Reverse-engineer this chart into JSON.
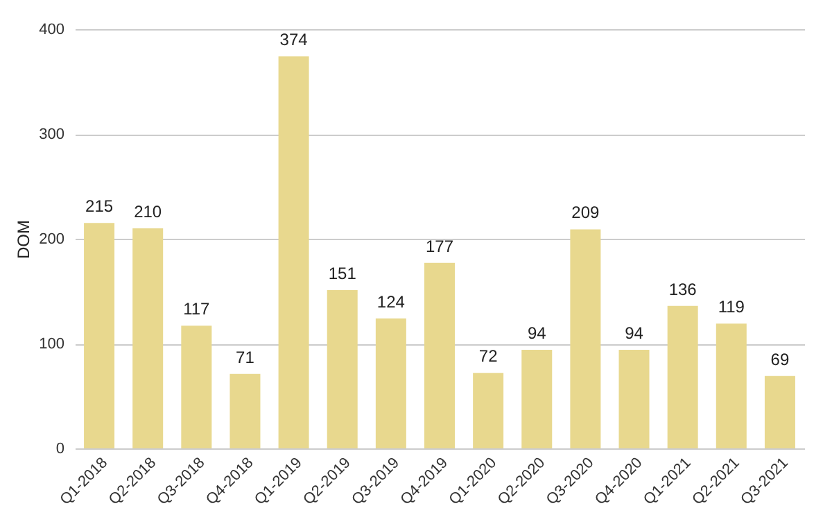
{
  "chart_data": {
    "type": "bar",
    "ylabel": "DOM",
    "categories": [
      "Q1-2018",
      "Q2-2018",
      "Q3-2018",
      "Q4-2018",
      "Q1-2019",
      "Q2-2019",
      "Q3-2019",
      "Q4-2019",
      "Q1-2020",
      "Q2-2020",
      "Q3-2020",
      "Q4-2020",
      "Q1-2021",
      "Q2-2021",
      "Q3-2021"
    ],
    "values": [
      215,
      210,
      117,
      71,
      374,
      151,
      124,
      177,
      72,
      94,
      209,
      94,
      136,
      119,
      69
    ],
    "color": "#e8d88e",
    "ylim": [
      0,
      400
    ],
    "yticks": [
      0,
      100,
      200,
      300,
      400
    ],
    "grid": "y",
    "data_labels": true
  }
}
